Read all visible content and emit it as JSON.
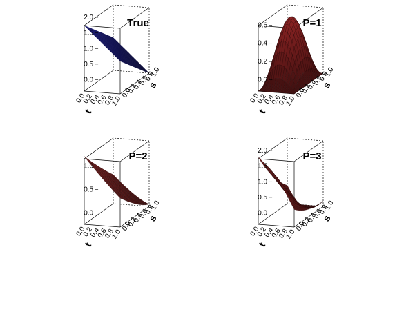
{
  "chart_data": [
    {
      "type": "surface3d",
      "title": "True",
      "surface_color": "#1a1a6e",
      "xlabel": "t",
      "ylabel": "s",
      "x_ticks": [
        "0.0",
        "0.2",
        "0.4",
        "0.6",
        "0.8",
        "1.0"
      ],
      "y_ticks": [
        "0.0",
        "0.2",
        "0.4",
        "0.6",
        "0.8",
        "1.0"
      ],
      "z_ticks": [
        "0.0",
        "0.5",
        "1.0",
        "1.5",
        "2.0"
      ],
      "zlim": [
        0,
        2.1
      ],
      "surface": "plane rising from 0 at front corner to ~2.1 at back corner"
    },
    {
      "type": "surface3d",
      "title": "P=1",
      "surface_color": "#8b2323",
      "xlabel": "t",
      "ylabel": "s",
      "x_ticks": [
        "0.0",
        "0.2",
        "0.4",
        "0.6",
        "0.8",
        "1.0"
      ],
      "y_ticks": [
        "0.0",
        "0.2",
        "0.4",
        "0.6",
        "0.8",
        "1.0"
      ],
      "z_ticks": [
        "0.0",
        "0.2",
        "0.4",
        "0.6"
      ],
      "zlim": [
        0,
        0.72
      ],
      "surface": "single smooth hump peaking near centre (~0.7)"
    },
    {
      "type": "surface3d",
      "title": "P=2",
      "surface_color": "#8b2323",
      "xlabel": "t",
      "ylabel": "s",
      "x_ticks": [
        "0.0",
        "0.2",
        "0.4",
        "0.6",
        "0.8",
        "1.0"
      ],
      "y_ticks": [
        "0.0",
        "0.2",
        "0.4",
        "0.6",
        "0.8",
        "1.0"
      ],
      "z_ticks": [
        "0.0",
        "0.5",
        "1.0"
      ],
      "zlim": [
        0,
        1.4
      ],
      "surface": "sloping surface rising toward back corner (~1.4)"
    },
    {
      "type": "surface3d",
      "title": "P=3",
      "surface_color": "#8b2323",
      "xlabel": "t",
      "ylabel": "s",
      "x_ticks": [
        "0.0",
        "0.2",
        "0.4",
        "0.6",
        "0.8",
        "1.0"
      ],
      "y_ticks": [
        "0.0",
        "0.2",
        "0.4",
        "0.6",
        "0.8",
        "1.0"
      ],
      "z_ticks": [
        "0.0",
        "0.5",
        "1.0",
        "1.5",
        "2.0"
      ],
      "zlim": [
        0,
        2.1
      ],
      "surface": "wavy surface with dip in middle, rising at back corner (~2)"
    }
  ]
}
